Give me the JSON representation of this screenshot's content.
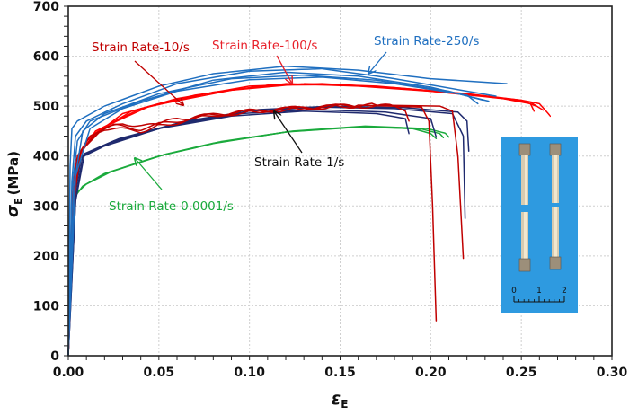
{
  "chart_data": {
    "type": "line",
    "title": "",
    "xlabel": "εE",
    "xlabel_symbol": "ε",
    "xlabel_sub": "E",
    "ylabel": "σE (MPa)",
    "ylabel_symbol": "σ",
    "ylabel_sub": "E",
    "ylabel_unit": "(MPa)",
    "xlim": [
      0,
      0.3
    ],
    "ylim": [
      0,
      700
    ],
    "x_ticks": [
      0,
      0.05,
      0.1,
      0.15,
      0.2,
      0.25,
      0.3
    ],
    "x_tick_labels": [
      "0.00",
      "0.05",
      "0.10",
      "0.15",
      "0.20",
      "0.25",
      "0.30"
    ],
    "x_minor_step": 0.01,
    "y_ticks": [
      0,
      100,
      200,
      300,
      400,
      500,
      600,
      700
    ],
    "y_tick_labels": [
      "0",
      "100",
      "200",
      "300",
      "400",
      "500",
      "600",
      "700"
    ],
    "y_minor_step": 20,
    "grid": "dotted",
    "legend": "none (inline annotations)",
    "series": [
      {
        "name": "Strain Rate-250/s",
        "color": "#1F6FC0",
        "curves": [
          [
            [
              0,
              0
            ],
            [
              0.001,
              380
            ],
            [
              0.002,
              455
            ],
            [
              0.005,
              470
            ],
            [
              0.02,
              500
            ],
            [
              0.05,
              540
            ],
            [
              0.08,
              565
            ],
            [
              0.12,
              580
            ],
            [
              0.16,
              572
            ],
            [
              0.2,
              555
            ],
            [
              0.242,
              545
            ]
          ],
          [
            [
              0,
              0
            ],
            [
              0.002,
              350
            ],
            [
              0.004,
              440
            ],
            [
              0.01,
              470
            ],
            [
              0.03,
              505
            ],
            [
              0.06,
              545
            ],
            [
              0.1,
              570
            ],
            [
              0.14,
              575
            ],
            [
              0.18,
              555
            ],
            [
              0.22,
              530
            ],
            [
              0.236,
              520
            ]
          ],
          [
            [
              0,
              0
            ],
            [
              0.002,
              330
            ],
            [
              0.005,
              430
            ],
            [
              0.012,
              470
            ],
            [
              0.04,
              510
            ],
            [
              0.08,
              552
            ],
            [
              0.12,
              568
            ],
            [
              0.16,
              560
            ],
            [
              0.2,
              538
            ],
            [
              0.232,
              510
            ]
          ],
          [
            [
              0,
              0
            ],
            [
              0.003,
              340
            ],
            [
              0.008,
              450
            ],
            [
              0.02,
              485
            ],
            [
              0.05,
              525
            ],
            [
              0.09,
              555
            ],
            [
              0.13,
              562
            ],
            [
              0.17,
              552
            ],
            [
              0.21,
              530
            ],
            [
              0.229,
              512
            ]
          ],
          [
            [
              0,
              0
            ],
            [
              0.004,
              360
            ],
            [
              0.012,
              455
            ],
            [
              0.03,
              495
            ],
            [
              0.06,
              530
            ],
            [
              0.1,
              553
            ],
            [
              0.14,
              558
            ],
            [
              0.18,
              545
            ],
            [
              0.22,
              522
            ],
            [
              0.226,
              505
            ]
          ]
        ]
      },
      {
        "name": "Strain Rate-100/s",
        "color": "#FF0000",
        "curves": [
          [
            [
              0,
              0
            ],
            [
              0.002,
              300
            ],
            [
              0.004,
              390
            ],
            [
              0.01,
              430
            ],
            [
              0.03,
              485
            ],
            [
              0.06,
              515
            ],
            [
              0.1,
              540
            ],
            [
              0.14,
              545
            ],
            [
              0.18,
              537
            ],
            [
              0.22,
              525
            ],
            [
              0.25,
              512
            ],
            [
              0.26,
              505
            ],
            [
              0.266,
              480
            ]
          ],
          [
            [
              0,
              0
            ],
            [
              0.002,
              290
            ],
            [
              0.005,
              395
            ],
            [
              0.012,
              440
            ],
            [
              0.035,
              490
            ],
            [
              0.07,
              522
            ],
            [
              0.11,
              542
            ],
            [
              0.15,
              543
            ],
            [
              0.19,
              533
            ],
            [
              0.23,
              520
            ],
            [
              0.255,
              508
            ],
            [
              0.262,
              492
            ]
          ],
          [
            [
              0,
              0
            ],
            [
              0.003,
              300
            ],
            [
              0.006,
              400
            ],
            [
              0.015,
              450
            ],
            [
              0.04,
              495
            ],
            [
              0.08,
              528
            ],
            [
              0.12,
              545
            ],
            [
              0.16,
              540
            ],
            [
              0.2,
              530
            ],
            [
              0.24,
              515
            ],
            [
              0.255,
              505
            ],
            [
              0.257,
              490
            ]
          ],
          [
            [
              0,
              0
            ],
            [
              0.003,
              320
            ],
            [
              0.007,
              410
            ],
            [
              0.018,
              455
            ],
            [
              0.045,
              500
            ],
            [
              0.09,
              532
            ],
            [
              0.13,
              545
            ],
            [
              0.17,
              540
            ],
            [
              0.21,
              528
            ],
            [
              0.25,
              512
            ],
            [
              0.258,
              500
            ]
          ]
        ]
      },
      {
        "name": "Strain Rate-10/s",
        "color": "#C00000",
        "wavy": true,
        "curves": [
          [
            [
              0,
              0
            ],
            [
              0.002,
              300
            ],
            [
              0.005,
              400
            ],
            [
              0.012,
              440
            ],
            [
              0.02,
              455
            ],
            [
              0.04,
              450
            ],
            [
              0.06,
              475
            ],
            [
              0.09,
              485
            ],
            [
              0.12,
              493
            ],
            [
              0.15,
              500
            ],
            [
              0.18,
              500
            ],
            [
              0.186,
              490
            ],
            [
              0.188,
              470
            ]
          ],
          [
            [
              0,
              0
            ],
            [
              0.003,
              300
            ],
            [
              0.006,
              405
            ],
            [
              0.015,
              445
            ],
            [
              0.025,
              460
            ],
            [
              0.04,
              455
            ],
            [
              0.07,
              478
            ],
            [
              0.1,
              490
            ],
            [
              0.13,
              497
            ],
            [
              0.16,
              502
            ],
            [
              0.195,
              498
            ],
            [
              0.199,
              470
            ],
            [
              0.201,
              300
            ],
            [
              0.203,
              70
            ]
          ],
          [
            [
              0,
              0
            ],
            [
              0.003,
              310
            ],
            [
              0.007,
              410
            ],
            [
              0.018,
              450
            ],
            [
              0.03,
              465
            ],
            [
              0.05,
              460
            ],
            [
              0.08,
              482
            ],
            [
              0.11,
              492
            ],
            [
              0.14,
              498
            ],
            [
              0.17,
              502
            ],
            [
              0.205,
              500
            ],
            [
              0.212,
              490
            ],
            [
              0.215,
              400
            ],
            [
              0.218,
              195
            ]
          ]
        ]
      },
      {
        "name": "Strain Rate-1/s",
        "color": "#1F2A6E",
        "curves": [
          [
            [
              0,
              0
            ],
            [
              0.003,
              300
            ],
            [
              0.006,
              395
            ],
            [
              0.02,
              420
            ],
            [
              0.05,
              455
            ],
            [
              0.09,
              480
            ],
            [
              0.13,
              490
            ],
            [
              0.17,
              485
            ],
            [
              0.186,
              475
            ],
            [
              0.188,
              445
            ]
          ],
          [
            [
              0,
              0
            ],
            [
              0.003,
              300
            ],
            [
              0.007,
              398
            ],
            [
              0.022,
              425
            ],
            [
              0.055,
              460
            ],
            [
              0.095,
              485
            ],
            [
              0.135,
              493
            ],
            [
              0.175,
              488
            ],
            [
              0.2,
              475
            ],
            [
              0.203,
              438
            ]
          ],
          [
            [
              0,
              0
            ],
            [
              0.004,
              310
            ],
            [
              0.008,
              402
            ],
            [
              0.025,
              430
            ],
            [
              0.06,
              465
            ],
            [
              0.1,
              490
            ],
            [
              0.14,
              498
            ],
            [
              0.18,
              495
            ],
            [
              0.212,
              485
            ],
            [
              0.218,
              440
            ],
            [
              0.219,
              275
            ]
          ],
          [
            [
              0,
              0
            ],
            [
              0.004,
              310
            ],
            [
              0.009,
              405
            ],
            [
              0.028,
              435
            ],
            [
              0.065,
              470
            ],
            [
              0.105,
              493
            ],
            [
              0.145,
              500
            ],
            [
              0.185,
              497
            ],
            [
              0.215,
              488
            ],
            [
              0.22,
              470
            ],
            [
              0.221,
              410
            ]
          ]
        ]
      },
      {
        "name": "Strain Rate-0.0001/s",
        "color": "#1AAA3C",
        "curves": [
          [
            [
              0,
              0
            ],
            [
              0.002,
              250
            ],
            [
              0.004,
              320
            ],
            [
              0.008,
              340
            ],
            [
              0.02,
              365
            ],
            [
              0.05,
              400
            ],
            [
              0.08,
              425
            ],
            [
              0.12,
              448
            ],
            [
              0.16,
              458
            ],
            [
              0.19,
              455
            ],
            [
              0.2,
              445
            ],
            [
              0.203,
              435
            ]
          ],
          [
            [
              0,
              0
            ],
            [
              0.002,
              250
            ],
            [
              0.004,
              322
            ],
            [
              0.009,
              342
            ],
            [
              0.022,
              367
            ],
            [
              0.052,
              402
            ],
            [
              0.082,
              427
            ],
            [
              0.122,
              449
            ],
            [
              0.162,
              459
            ],
            [
              0.195,
              454
            ],
            [
              0.205,
              445
            ],
            [
              0.207,
              437
            ]
          ],
          [
            [
              0,
              0
            ],
            [
              0.002,
              250
            ],
            [
              0.004,
              324
            ],
            [
              0.01,
              344
            ],
            [
              0.024,
              369
            ],
            [
              0.054,
              404
            ],
            [
              0.084,
              429
            ],
            [
              0.124,
              450
            ],
            [
              0.164,
              460
            ],
            [
              0.198,
              455
            ],
            [
              0.208,
              446
            ],
            [
              0.21,
              438
            ]
          ]
        ]
      }
    ],
    "annotations": [
      {
        "text": "Strain Rate-10/s",
        "color": "#C00000",
        "arrow_to": [
          0.065,
          495
        ]
      },
      {
        "text": "Strain Rate-100/s",
        "color": "#E8202A",
        "arrow_to": [
          0.12,
          545
        ]
      },
      {
        "text": "Strain Rate-250/s",
        "color": "#1F6FC0",
        "arrow_to": [
          0.165,
          565
        ]
      },
      {
        "text": "Strain Rate-1/s",
        "color": "#111111",
        "arrow_to": [
          0.11,
          493
        ]
      },
      {
        "text": "Strain Rate-0.0001/s",
        "color": "#1AAA3C",
        "arrow_to": [
          0.035,
          400
        ]
      }
    ],
    "inset": {
      "description": "photo of four fractured tensile specimens on blue background",
      "background_color": "#2E9AE0",
      "scale_labels": [
        "0",
        "1",
        "2"
      ]
    }
  }
}
